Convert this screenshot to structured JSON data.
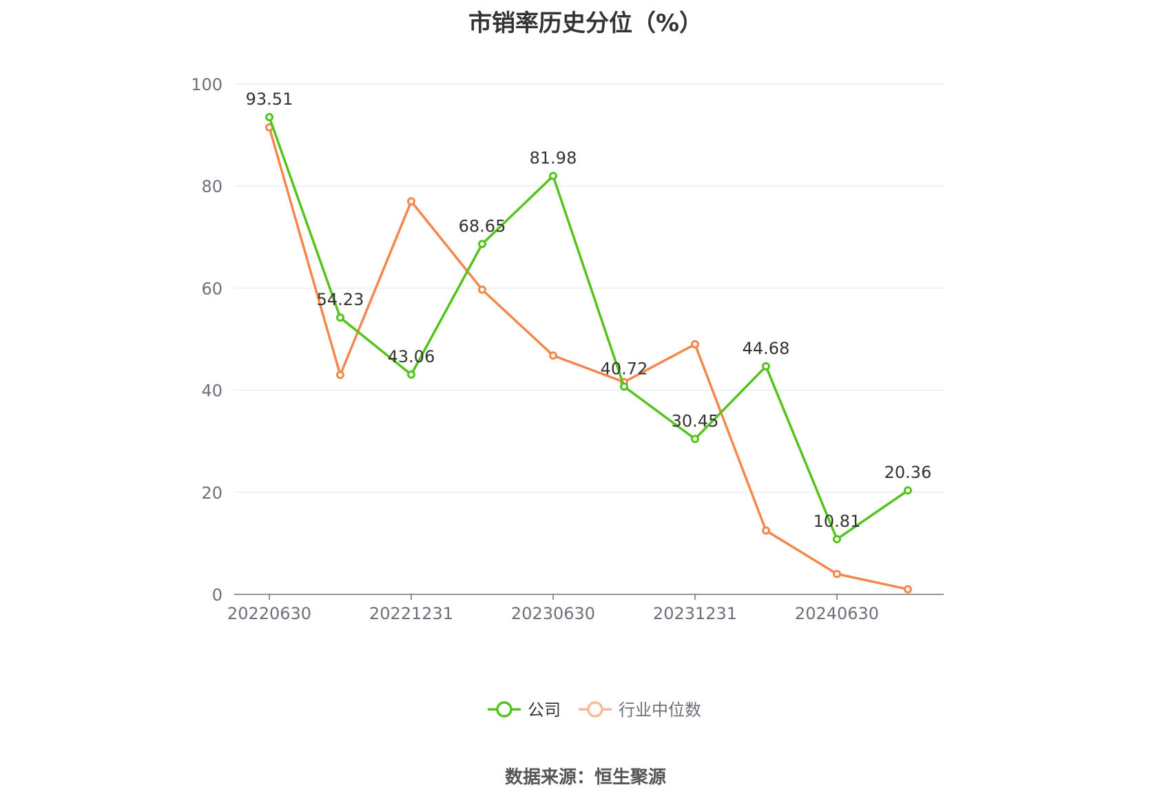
{
  "chart_data": {
    "type": "line",
    "title": "市销率历史分位（%）",
    "ylim": [
      0,
      100
    ],
    "yticks": [
      0,
      20,
      40,
      60,
      80,
      100
    ],
    "x": [
      "20220630",
      "20220930",
      "20221231",
      "20230331",
      "20230630",
      "20230930",
      "20231231",
      "20240331",
      "20240630",
      "20240930"
    ],
    "xtick_labels": [
      "20220630",
      "20221231",
      "20230630",
      "20231231",
      "20240630"
    ],
    "grid": true,
    "legend_position": "bottom",
    "series": [
      {
        "name": "公司",
        "color": "#52c41a",
        "values": [
          93.51,
          54.23,
          43.06,
          68.65,
          81.98,
          40.72,
          30.45,
          44.68,
          10.81,
          20.36
        ],
        "data_labels": [
          "93.51",
          "54.23",
          "43.06",
          "68.65",
          "81.98",
          "40.72",
          "30.45",
          "44.68",
          "10.81",
          "20.36"
        ]
      },
      {
        "name": "行业中位数",
        "color": "#f4874b",
        "legend_color": "#f9b896",
        "values": [
          91.5,
          43.0,
          77.0,
          59.7,
          46.8,
          41.6,
          49.0,
          12.5,
          4.0,
          1.0
        ]
      }
    ]
  },
  "footer": {
    "source": "数据来源：恒生聚源"
  }
}
